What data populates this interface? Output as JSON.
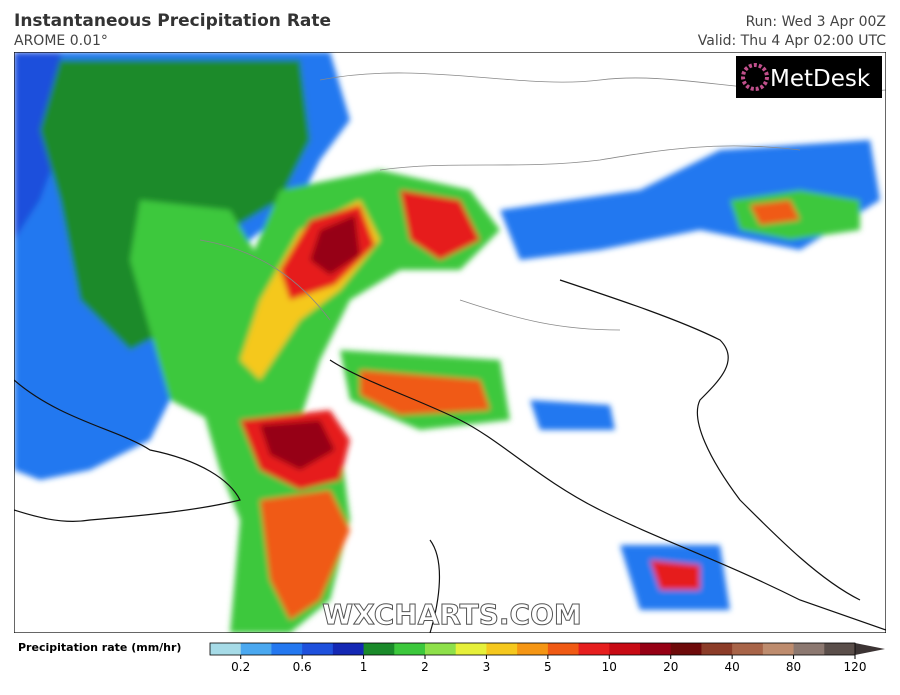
{
  "header": {
    "title": "Instantaneous Precipitation Rate",
    "model": "AROME 0.01°",
    "run": "Run: Wed 3 Apr 00Z",
    "valid": "Valid: Thu 4 Apr 02:00 UTC"
  },
  "logo": "MetDesk",
  "watermark": "WXCHARTS.COM",
  "colorbar": {
    "label": "Precipitation rate (mm/hr)",
    "ticks": [
      0.2,
      0.6,
      1,
      2,
      3,
      5,
      10,
      20,
      40,
      80,
      120
    ],
    "colors": [
      "#a6dbe7",
      "#4aa8f0",
      "#2478f0",
      "#1e50dc",
      "#1428b4",
      "#1a8a2a",
      "#3cc83c",
      "#8ee04a",
      "#e6f03a",
      "#f5c81e",
      "#f59614",
      "#f05a14",
      "#e61e1e",
      "#c80a14",
      "#960014",
      "#6e0a0a",
      "#8c3c28",
      "#a86448",
      "#be8c6e",
      "#8c7870",
      "#5a4e4a",
      "#3c3434"
    ]
  }
}
